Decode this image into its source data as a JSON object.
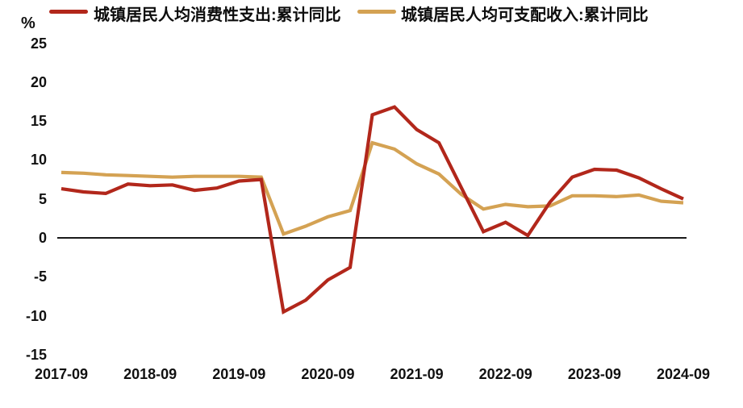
{
  "unit_label": "%",
  "legend": {
    "items": [
      {
        "label": "城镇居民人均消费性支出:累计同比",
        "color": "#b2271b"
      },
      {
        "label": "城镇居民人均可支配收入:累计同比",
        "color": "#d4a253"
      }
    ]
  },
  "chart_data": {
    "type": "line",
    "title": "",
    "unit": "%",
    "grid": false,
    "legend_position": "top",
    "ylim": [
      -15,
      25
    ],
    "y_ticks": [
      25,
      20,
      15,
      10,
      5,
      0,
      -5,
      -10,
      -15
    ],
    "x": [
      "2017-09",
      "2017-12",
      "2018-03",
      "2018-06",
      "2018-09",
      "2018-12",
      "2019-03",
      "2019-06",
      "2019-09",
      "2019-12",
      "2020-03",
      "2020-06",
      "2020-09",
      "2020-12",
      "2021-03",
      "2021-06",
      "2021-09",
      "2021-12",
      "2022-03",
      "2022-06",
      "2022-09",
      "2022-12",
      "2023-03",
      "2023-06",
      "2023-09",
      "2023-12",
      "2024-03",
      "2024-06",
      "2024-09"
    ],
    "x_tick_labels": [
      "2017-09",
      "2018-09",
      "2019-09",
      "2020-09",
      "2021-09",
      "2022-09",
      "2023-09",
      "2024-09"
    ],
    "series": [
      {
        "name": "城镇居民人均消费性支出:累计同比",
        "color": "#b2271b",
        "values": [
          6.3,
          5.9,
          5.7,
          6.9,
          6.7,
          6.8,
          6.1,
          6.4,
          7.3,
          7.5,
          -9.5,
          -8.0,
          -5.4,
          -3.8,
          15.8,
          16.8,
          13.9,
          12.2,
          6.5,
          0.8,
          2.0,
          0.3,
          4.6,
          7.8,
          8.8,
          8.7,
          7.7,
          6.3,
          5.0
        ]
      },
      {
        "name": "城镇居民人均可支配收入:累计同比",
        "color": "#d4a253",
        "values": [
          8.4,
          8.3,
          8.1,
          8.0,
          7.9,
          7.8,
          7.9,
          7.9,
          7.9,
          7.8,
          0.5,
          1.5,
          2.7,
          3.5,
          12.2,
          11.4,
          9.5,
          8.2,
          5.6,
          3.7,
          4.3,
          4.0,
          4.1,
          5.4,
          5.4,
          5.3,
          5.5,
          4.7,
          4.5
        ]
      }
    ]
  }
}
